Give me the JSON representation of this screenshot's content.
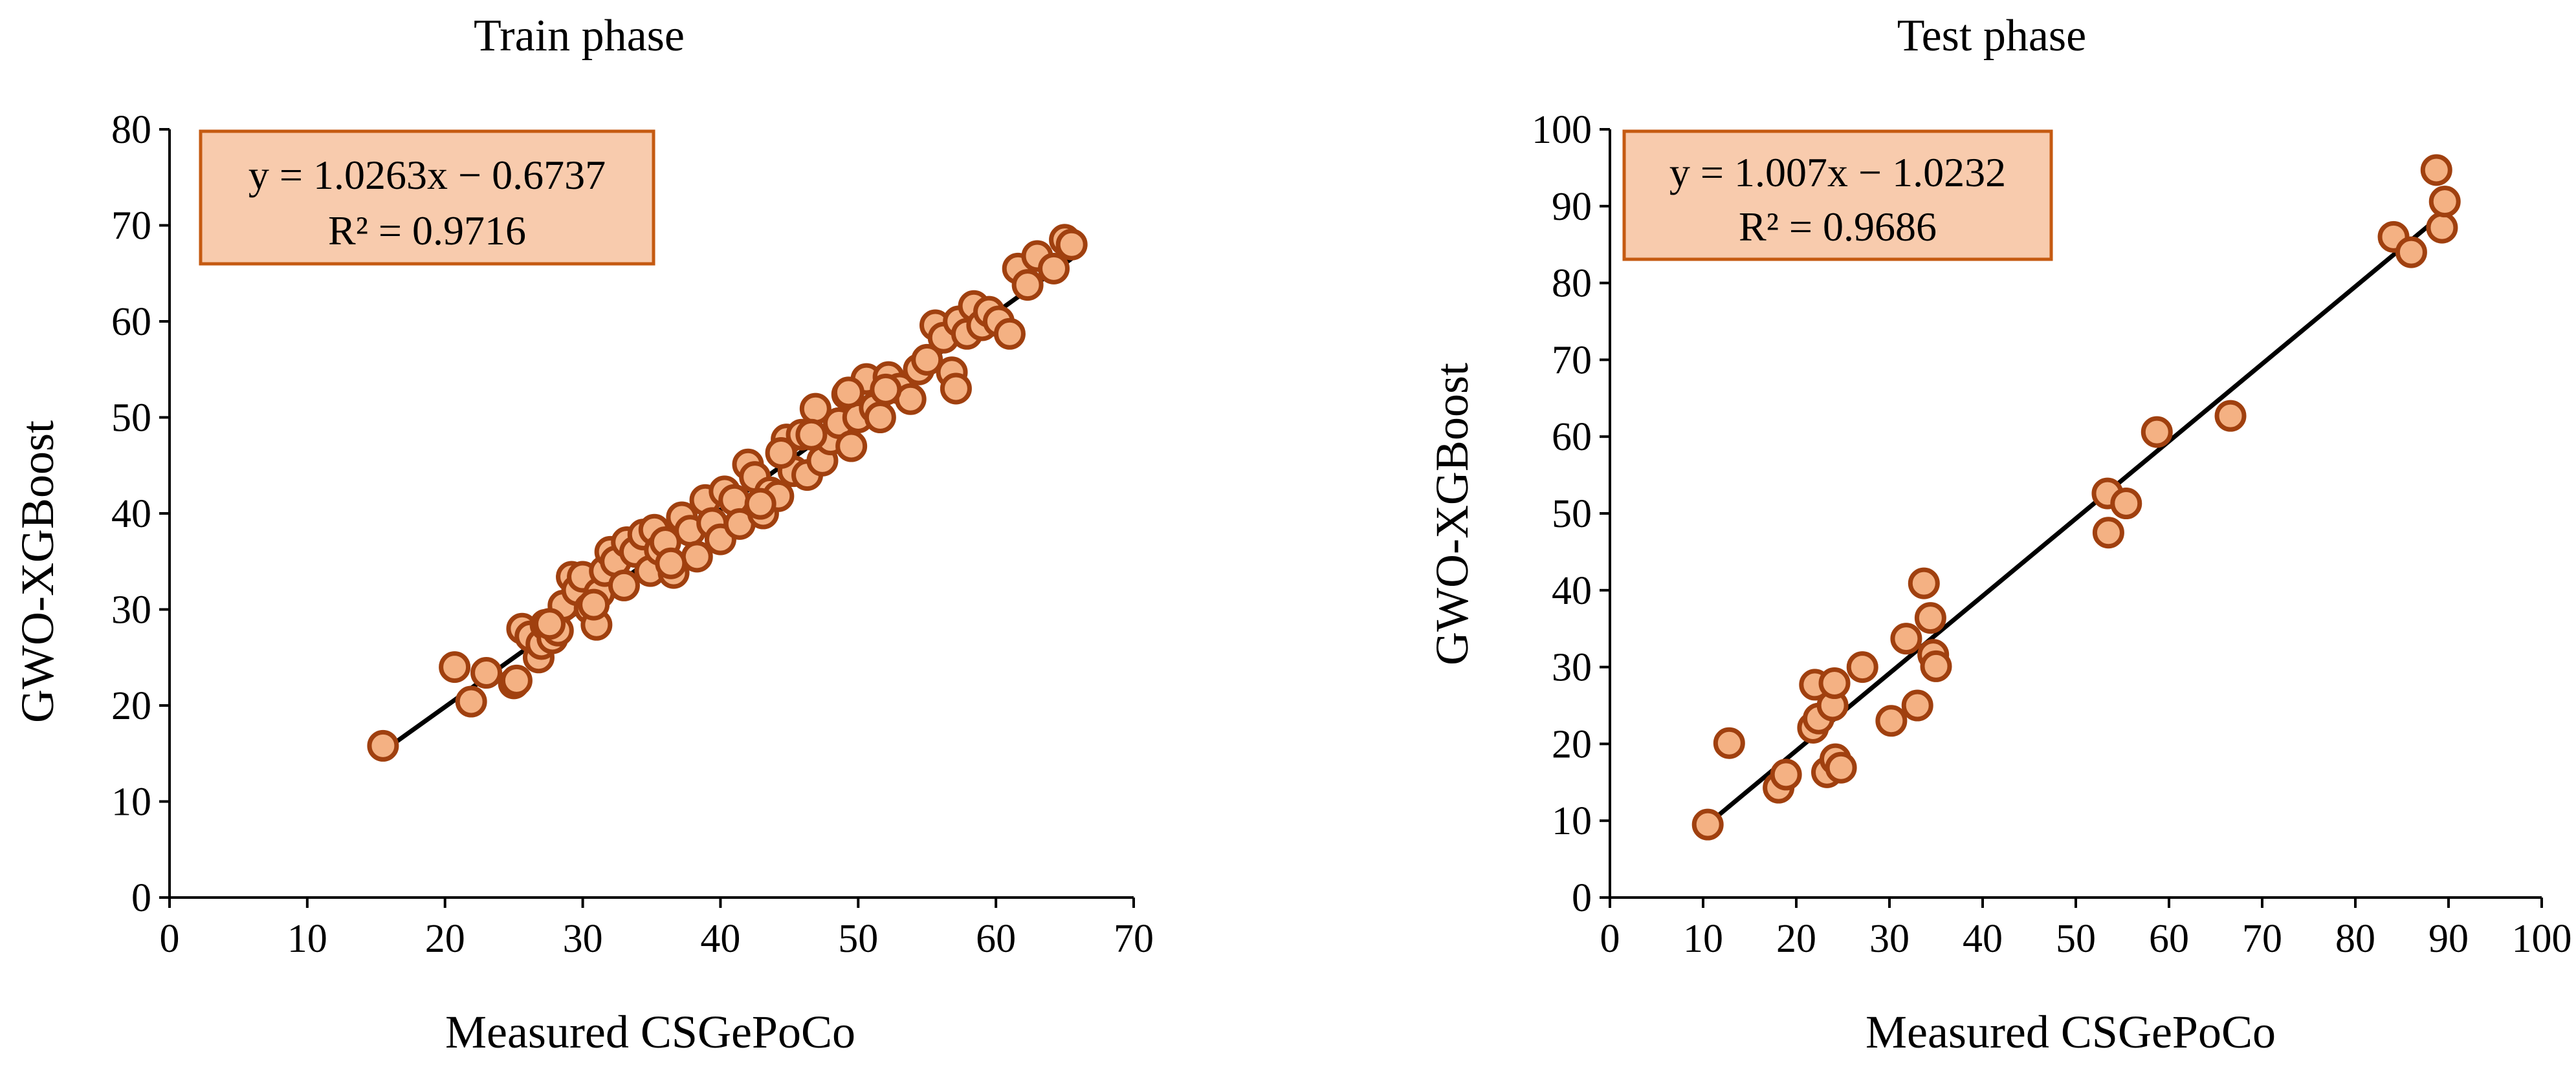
{
  "colors": {
    "marker_fill": "#f4b183",
    "marker_edge": "#a0400f",
    "box_fill": "#f8cbad",
    "box_edge": "#c55a11",
    "line": "#000000"
  },
  "chart_data": [
    {
      "type": "scatter",
      "title": "Train phase",
      "xlabel": "Measured CSGePoCo",
      "ylabel": "GWO-XGBoost",
      "xlim": [
        0,
        70
      ],
      "ylim": [
        0,
        80
      ],
      "xticks": [
        "0",
        "10",
        "20",
        "30",
        "40",
        "50",
        "60",
        "70"
      ],
      "yticks": [
        "0",
        "10",
        "20",
        "30",
        "40",
        "50",
        "60",
        "70",
        "80"
      ],
      "equation": "y = 1.0263x − 0.6737",
      "r2": "R² = 0.9716",
      "fit": {
        "slope": 1.0263,
        "intercept": -0.6737,
        "x_range": [
          15.5,
          65.5
        ]
      },
      "x": [
        15.5,
        20.7,
        21.9,
        23.0,
        25.0,
        25.2,
        25.6,
        26.2,
        26.8,
        27.0,
        27.3,
        27.8,
        28.2,
        28.6,
        29.2,
        29.6,
        30.0,
        30.5,
        31.0,
        31.2,
        31.6,
        32.0,
        32.4,
        33.0,
        33.2,
        33.8,
        34.4,
        34.9,
        35.2,
        35.6,
        36.0,
        36.6,
        37.2,
        37.8,
        38.3,
        38.9,
        39.4,
        40.0,
        40.3,
        41.0,
        41.4,
        42.0,
        42.5,
        43.1,
        43.6,
        44.2,
        44.8,
        45.3,
        45.9,
        46.3,
        46.9,
        47.4,
        48.0,
        48.6,
        49.2,
        49.5,
        50.0,
        50.6,
        51.2,
        51.6,
        52.2,
        53.0,
        53.8,
        54.4,
        55.0,
        55.6,
        56.2,
        56.8,
        57.3,
        57.9,
        58.4,
        59.0,
        59.5,
        60.2,
        61.0,
        61.6,
        62.3,
        63.0,
        64.2,
        65.0,
        65.5,
        44.4,
        46.6,
        49.3,
        52.0,
        57.1,
        27.6,
        30.8,
        36.4,
        42.9
      ],
      "y": [
        15.8,
        24.0,
        20.4,
        23.4,
        22.3,
        22.6,
        28.0,
        27.2,
        25.0,
        26.4,
        28.4,
        27.0,
        27.8,
        30.4,
        33.4,
        32.0,
        33.4,
        30.1,
        28.4,
        31.7,
        34.0,
        36.0,
        35.0,
        32.5,
        37.0,
        36.0,
        37.8,
        34.0,
        38.3,
        36.2,
        37.0,
        33.8,
        39.6,
        38.2,
        35.5,
        41.4,
        39.0,
        37.3,
        42.3,
        41.4,
        38.9,
        45.1,
        43.8,
        40.0,
        42.2,
        41.8,
        47.7,
        44.4,
        48.2,
        44.0,
        50.9,
        45.5,
        47.7,
        49.4,
        52.4,
        47.0,
        50.0,
        54.0,
        51.0,
        50.0,
        54.2,
        53.0,
        51.9,
        55.0,
        56.0,
        59.6,
        58.3,
        54.7,
        60.0,
        58.7,
        61.6,
        59.6,
        61.0,
        60.0,
        58.7,
        65.5,
        63.8,
        66.8,
        65.5,
        68.5,
        68.0,
        46.3,
        48.2,
        52.6,
        52.9,
        53.0,
        28.5,
        30.5,
        34.8,
        41.0
      ]
    },
    {
      "type": "scatter",
      "title": "Test phase",
      "xlabel": "Measured CSGePoCo",
      "ylabel": "GWO-XGBoost",
      "xlim": [
        0,
        100
      ],
      "ylim": [
        0,
        100
      ],
      "xticks": [
        "0",
        "10",
        "20",
        "30",
        "40",
        "50",
        "60",
        "70",
        "80",
        "90",
        "100"
      ],
      "yticks": [
        "0",
        "10",
        "20",
        "30",
        "40",
        "50",
        "60",
        "70",
        "80",
        "90",
        "100"
      ],
      "equation": "y = 1.007x − 1.0232",
      "r2": "R² = 0.9686",
      "fit": {
        "slope": 1.007,
        "intercept": -1.0232,
        "x_range": [
          10.5,
          89.3
        ]
      },
      "x": [
        10.5,
        12.8,
        18.1,
        18.9,
        21.8,
        22.0,
        22.4,
        23.3,
        23.9,
        24.1,
        24.2,
        24.8,
        27.1,
        30.2,
        31.8,
        33.0,
        33.7,
        34.4,
        34.7,
        35.0,
        53.4,
        53.5,
        55.4,
        58.7,
        66.6,
        84.1,
        86.0,
        88.7,
        89.3,
        89.6
      ],
      "y": [
        9.5,
        20.1,
        14.3,
        16.0,
        22.1,
        27.7,
        23.3,
        16.3,
        25.0,
        27.9,
        18.0,
        16.9,
        30.0,
        23.0,
        33.7,
        25.0,
        40.9,
        36.4,
        31.6,
        30.1,
        52.6,
        47.5,
        51.3,
        60.6,
        62.7,
        86.0,
        84.0,
        94.7,
        87.2,
        90.6
      ]
    }
  ]
}
